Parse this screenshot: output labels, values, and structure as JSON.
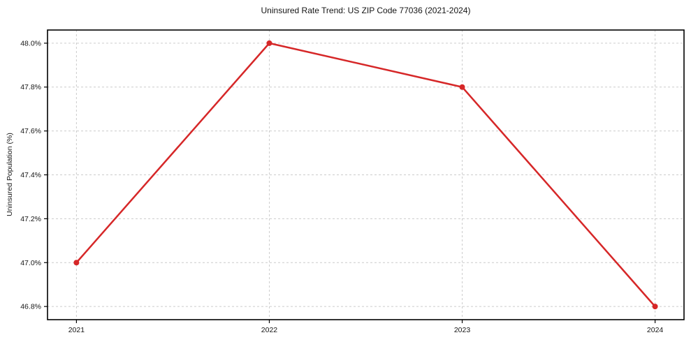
{
  "chart_data": {
    "type": "line",
    "title": "Uninsured Rate Trend: US ZIP Code 77036 (2021-2024)",
    "xlabel": "",
    "ylabel": "Uninsured Population (%)",
    "x": [
      2021,
      2022,
      2023,
      2024
    ],
    "series": [
      {
        "name": "Uninsured Rate",
        "values": [
          47.0,
          48.0,
          47.8,
          46.8
        ],
        "color": "#d62728"
      }
    ],
    "xlim": [
      2020.85,
      2024.15
    ],
    "ylim": [
      46.74,
      48.06
    ],
    "xticks": [
      2021,
      2022,
      2023,
      2024
    ],
    "xtick_labels": [
      "2021",
      "2022",
      "2023",
      "2024"
    ],
    "yticks": [
      46.8,
      47.0,
      47.2,
      47.4,
      47.6,
      47.8,
      48.0
    ],
    "ytick_labels": [
      "46.8%",
      "47.0%",
      "47.2%",
      "47.4%",
      "47.6%",
      "47.8%",
      "48.0%"
    ],
    "grid": true,
    "grid_color": "#cccccc",
    "grid_dash": "3 3",
    "spine_color": "#000000",
    "text_color": "#151515",
    "background": "#ffffff",
    "line_width": 2.5,
    "marker_radius": 4,
    "legend": "none"
  }
}
